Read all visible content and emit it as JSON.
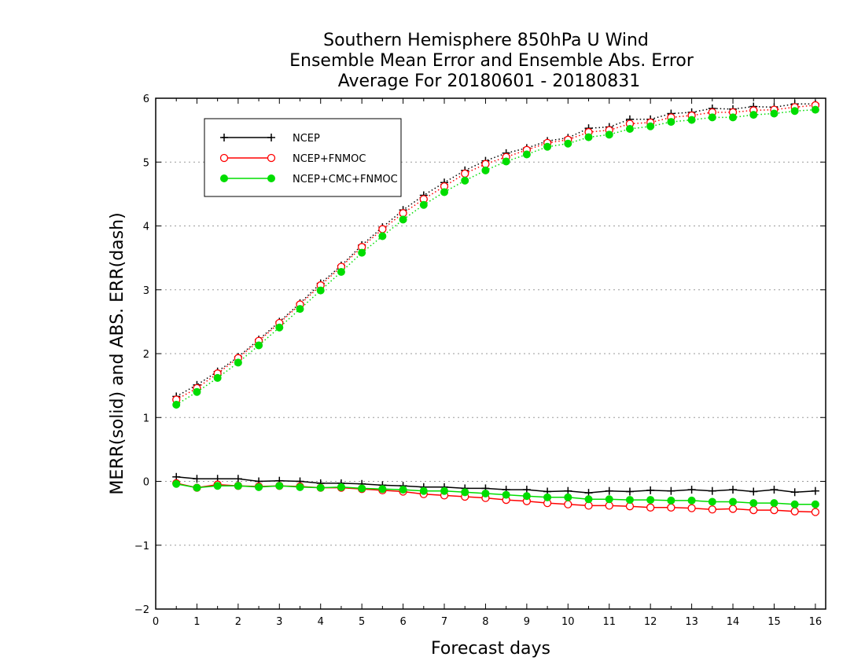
{
  "chart_data": {
    "type": "line",
    "title_lines": [
      "Southern Hemisphere 850hPa U Wind",
      "Ensemble Mean Error and Ensemble Abs. Error",
      "Average For 20180601 - 20180831"
    ],
    "xlabel": "Forecast days",
    "ylabel": "MERR(solid) and ABS. ERR(dash)",
    "xlim": [
      0,
      16.25
    ],
    "ylim": [
      -2,
      6
    ],
    "x_ticks": [
      "0",
      "1",
      "2",
      "3",
      "4",
      "5",
      "6",
      "7",
      "8",
      "9",
      "10",
      "11",
      "12",
      "13",
      "14",
      "15",
      "16"
    ],
    "y_ticks": [
      "−2",
      "−1",
      "0",
      "1",
      "2",
      "3",
      "4",
      "5",
      "6"
    ],
    "grid": "horizontal dotted",
    "legend_position": "top-left",
    "legend": [
      "NCEP",
      "NCEP+FNMOC",
      "NCEP+CMC+FNMOC"
    ],
    "x": [
      0.5,
      1.0,
      1.5,
      2.0,
      2.5,
      3.0,
      3.5,
      4.0,
      4.5,
      5.0,
      5.5,
      6.0,
      6.5,
      7.0,
      7.5,
      8.0,
      8.5,
      9.0,
      9.5,
      10.0,
      10.5,
      11.0,
      11.5,
      12.0,
      12.5,
      13.0,
      13.5,
      14.0,
      14.5,
      15.0,
      15.5,
      16.0
    ],
    "series": [
      {
        "name": "NCEP",
        "metric": "abs_error",
        "style": "dotted",
        "color": "#000000",
        "marker": "plus",
        "values": [
          1.33,
          1.51,
          1.72,
          1.95,
          2.22,
          2.5,
          2.79,
          3.1,
          3.38,
          3.7,
          3.98,
          4.25,
          4.48,
          4.68,
          4.87,
          5.02,
          5.14,
          5.22,
          5.33,
          5.38,
          5.53,
          5.55,
          5.67,
          5.67,
          5.76,
          5.78,
          5.84,
          5.83,
          5.87,
          5.86,
          5.91,
          5.91
        ]
      },
      {
        "name": "NCEP+FNMOC",
        "metric": "abs_error",
        "style": "dotted",
        "color": "#ff0000",
        "marker": "open-circle",
        "values": [
          1.28,
          1.46,
          1.69,
          1.93,
          2.2,
          2.48,
          2.77,
          3.07,
          3.36,
          3.67,
          3.95,
          4.2,
          4.42,
          4.62,
          4.82,
          4.97,
          5.08,
          5.19,
          5.3,
          5.35,
          5.47,
          5.5,
          5.6,
          5.62,
          5.7,
          5.73,
          5.78,
          5.78,
          5.81,
          5.82,
          5.86,
          5.89
        ]
      },
      {
        "name": "NCEP+CMC+FNMOC",
        "metric": "abs_error",
        "style": "dotted",
        "color": "#00dd00",
        "marker": "filled-circle",
        "values": [
          1.2,
          1.4,
          1.62,
          1.86,
          2.13,
          2.41,
          2.7,
          2.99,
          3.28,
          3.58,
          3.84,
          4.1,
          4.33,
          4.53,
          4.71,
          4.87,
          5.01,
          5.12,
          5.24,
          5.29,
          5.39,
          5.43,
          5.52,
          5.56,
          5.63,
          5.66,
          5.7,
          5.7,
          5.74,
          5.76,
          5.8,
          5.82
        ]
      },
      {
        "name": "NCEP",
        "metric": "mean_error",
        "style": "solid",
        "color": "#000000",
        "marker": "plus",
        "values": [
          0.07,
          0.04,
          0.04,
          0.04,
          0.0,
          0.01,
          0.0,
          -0.03,
          -0.03,
          -0.04,
          -0.06,
          -0.07,
          -0.09,
          -0.09,
          -0.11,
          -0.11,
          -0.13,
          -0.13,
          -0.16,
          -0.15,
          -0.18,
          -0.15,
          -0.16,
          -0.14,
          -0.15,
          -0.13,
          -0.15,
          -0.13,
          -0.16,
          -0.13,
          -0.17,
          -0.15
        ]
      },
      {
        "name": "NCEP+FNMOC",
        "metric": "mean_error",
        "style": "solid",
        "color": "#ff0000",
        "marker": "open-circle",
        "values": [
          -0.03,
          -0.1,
          -0.05,
          -0.07,
          -0.08,
          -0.07,
          -0.08,
          -0.1,
          -0.1,
          -0.12,
          -0.14,
          -0.16,
          -0.2,
          -0.22,
          -0.24,
          -0.26,
          -0.29,
          -0.31,
          -0.34,
          -0.36,
          -0.38,
          -0.38,
          -0.39,
          -0.41,
          -0.41,
          -0.42,
          -0.44,
          -0.43,
          -0.45,
          -0.45,
          -0.47,
          -0.48
        ]
      },
      {
        "name": "NCEP+CMC+FNMOC",
        "metric": "mean_error",
        "style": "solid",
        "color": "#00dd00",
        "marker": "filled-circle",
        "values": [
          -0.04,
          -0.1,
          -0.07,
          -0.07,
          -0.09,
          -0.07,
          -0.09,
          -0.1,
          -0.09,
          -0.11,
          -0.12,
          -0.13,
          -0.15,
          -0.15,
          -0.17,
          -0.19,
          -0.21,
          -0.23,
          -0.25,
          -0.25,
          -0.28,
          -0.28,
          -0.29,
          -0.29,
          -0.3,
          -0.3,
          -0.32,
          -0.32,
          -0.34,
          -0.34,
          -0.36,
          -0.36
        ]
      }
    ]
  }
}
